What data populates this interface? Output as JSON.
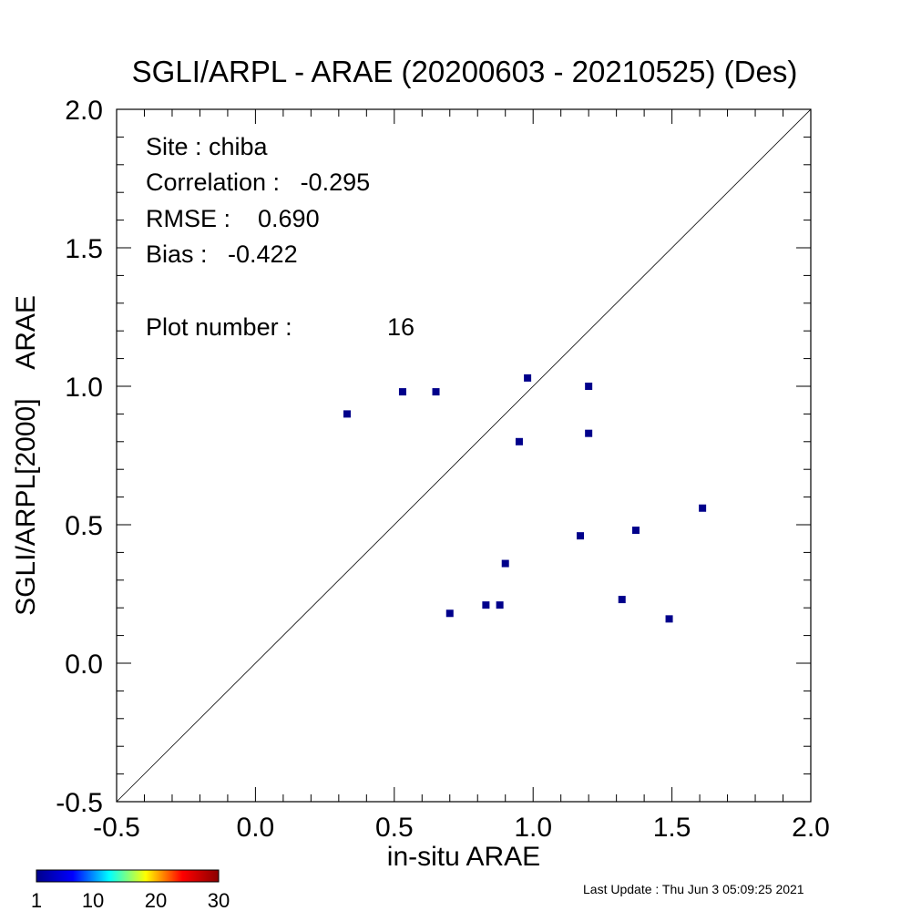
{
  "chart_data": {
    "type": "scatter",
    "title": "SGLI/ARPL - ARAE (20200603 - 20210525) (Des)",
    "xlabel": "in-situ ARAE",
    "ylabel": "SGLI/ARPL[2000]    ARAE",
    "xlim": [
      -0.5,
      2.0
    ],
    "ylim": [
      -0.5,
      2.0
    ],
    "x_ticks": [
      "-0.5",
      "0.0",
      "0.5",
      "1.0",
      "1.5",
      "2.0"
    ],
    "y_ticks": [
      "-0.5",
      "0.0",
      "0.5",
      "1.0",
      "1.5",
      "2.0"
    ],
    "x_tick_values": [
      -0.5,
      0.0,
      0.5,
      1.0,
      1.5,
      2.0
    ],
    "y_tick_values": [
      -0.5,
      0.0,
      0.5,
      1.0,
      1.5,
      2.0
    ],
    "minor_tick_step": 0.1,
    "grid": false,
    "reference_line": "1:1",
    "point_color": "#00008b",
    "points": [
      {
        "x": 0.33,
        "y": 0.9
      },
      {
        "x": 0.53,
        "y": 0.98
      },
      {
        "x": 0.65,
        "y": 0.98
      },
      {
        "x": 0.7,
        "y": 0.18
      },
      {
        "x": 0.83,
        "y": 0.21
      },
      {
        "x": 0.88,
        "y": 0.21
      },
      {
        "x": 0.9,
        "y": 0.36
      },
      {
        "x": 0.95,
        "y": 0.8
      },
      {
        "x": 0.98,
        "y": 1.03
      },
      {
        "x": 1.17,
        "y": 0.46
      },
      {
        "x": 1.2,
        "y": 1.0
      },
      {
        "x": 1.2,
        "y": 0.83
      },
      {
        "x": 1.32,
        "y": 0.23
      },
      {
        "x": 1.37,
        "y": 0.48
      },
      {
        "x": 1.49,
        "y": 0.16
      },
      {
        "x": 1.61,
        "y": 0.56
      }
    ],
    "annotations": {
      "site": "Site : chiba",
      "correlation": "Correlation :   -0.295",
      "rmse": "RMSE :    0.690",
      "bias": "Bias :   -0.422",
      "plot_number": "Plot number :",
      "plot_number_value": "16"
    },
    "colorbar": {
      "ticks": [
        "1",
        "10",
        "20",
        "30"
      ],
      "tick_values": [
        1,
        10,
        20,
        30
      ],
      "range": [
        1,
        30
      ],
      "colors": [
        "#00008b",
        "#0000ff",
        "#00ffff",
        "#ffff00",
        "#ff0000",
        "#8b0000"
      ]
    }
  },
  "footer": {
    "last_update": "Last Update : Thu Jun  3 05:09:25 2021"
  }
}
